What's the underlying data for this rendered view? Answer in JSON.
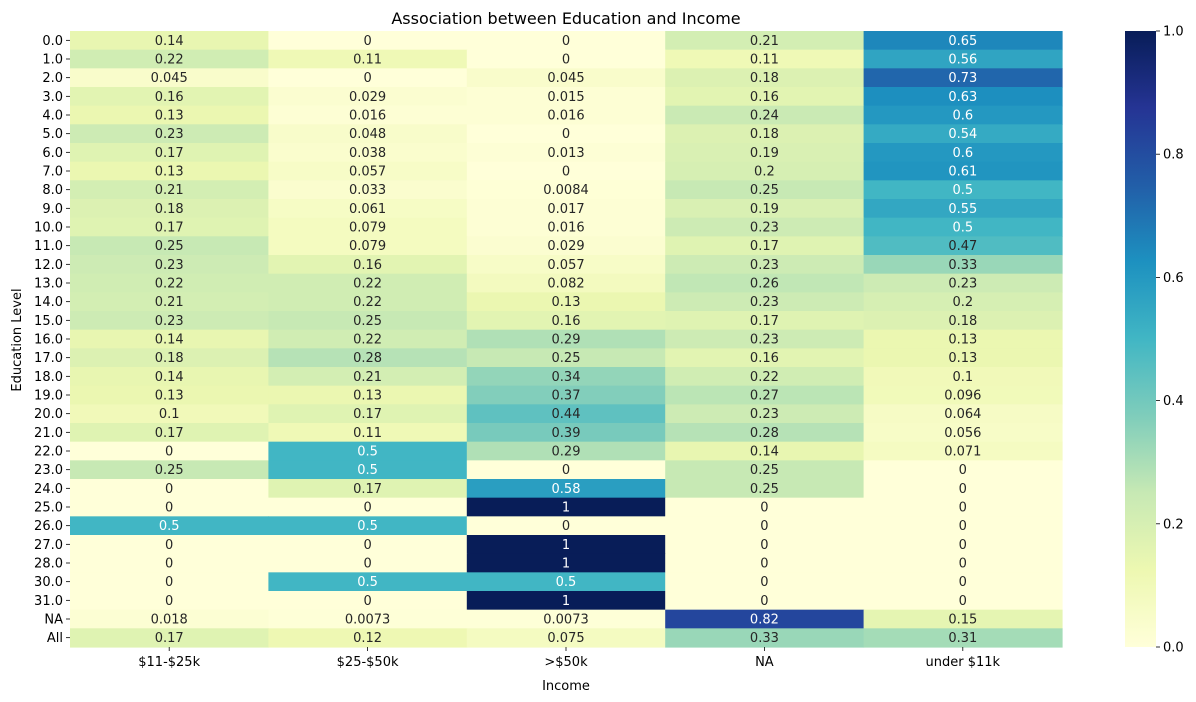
{
  "chart_data": {
    "type": "heatmap",
    "title": "Association between Education and Income",
    "xlabel": "Income",
    "ylabel": "Education Level",
    "columns": [
      "$11-$25k",
      "$25-$50k",
      ">$50k",
      "NA",
      "under $11k"
    ],
    "rows": [
      "0.0",
      "1.0",
      "2.0",
      "3.0",
      "4.0",
      "5.0",
      "6.0",
      "7.0",
      "8.0",
      "9.0",
      "10.0",
      "11.0",
      "12.0",
      "13.0",
      "14.0",
      "15.0",
      "16.0",
      "17.0",
      "18.0",
      "19.0",
      "20.0",
      "21.0",
      "22.0",
      "23.0",
      "24.0",
      "25.0",
      "26.0",
      "27.0",
      "28.0",
      "30.0",
      "31.0",
      "NA",
      "All"
    ],
    "values": [
      [
        0.14,
        0,
        0,
        0.21,
        0.65
      ],
      [
        0.22,
        0.11,
        0,
        0.11,
        0.56
      ],
      [
        0.045,
        0,
        0.045,
        0.18,
        0.73
      ],
      [
        0.16,
        0.029,
        0.015,
        0.16,
        0.63
      ],
      [
        0.13,
        0.016,
        0.016,
        0.24,
        0.6
      ],
      [
        0.23,
        0.048,
        0,
        0.18,
        0.54
      ],
      [
        0.17,
        0.038,
        0.013,
        0.19,
        0.6
      ],
      [
        0.13,
        0.057,
        0,
        0.2,
        0.61
      ],
      [
        0.21,
        0.033,
        0.0084,
        0.25,
        0.5
      ],
      [
        0.18,
        0.061,
        0.017,
        0.19,
        0.55
      ],
      [
        0.17,
        0.079,
        0.016,
        0.23,
        0.5
      ],
      [
        0.25,
        0.079,
        0.029,
        0.17,
        0.47
      ],
      [
        0.23,
        0.16,
        0.057,
        0.23,
        0.33
      ],
      [
        0.22,
        0.22,
        0.082,
        0.26,
        0.23
      ],
      [
        0.21,
        0.22,
        0.13,
        0.23,
        0.2
      ],
      [
        0.23,
        0.25,
        0.16,
        0.17,
        0.18
      ],
      [
        0.14,
        0.22,
        0.29,
        0.23,
        0.13
      ],
      [
        0.18,
        0.28,
        0.25,
        0.16,
        0.13
      ],
      [
        0.14,
        0.21,
        0.34,
        0.22,
        0.1
      ],
      [
        0.13,
        0.13,
        0.37,
        0.27,
        0.096
      ],
      [
        0.1,
        0.17,
        0.44,
        0.23,
        0.064
      ],
      [
        0.17,
        0.11,
        0.39,
        0.28,
        0.056
      ],
      [
        0,
        0.5,
        0.29,
        0.14,
        0.071
      ],
      [
        0.25,
        0.5,
        0,
        0.25,
        0
      ],
      [
        0,
        0.17,
        0.58,
        0.25,
        0
      ],
      [
        0,
        0,
        1,
        0,
        0
      ],
      [
        0.5,
        0.5,
        0,
        0,
        0
      ],
      [
        0,
        0,
        1,
        0,
        0
      ],
      [
        0,
        0,
        1,
        0,
        0
      ],
      [
        0,
        0.5,
        0.5,
        0,
        0
      ],
      [
        0,
        0,
        1,
        0,
        0
      ],
      [
        0.018,
        0.0073,
        0.0073,
        0.82,
        0.15
      ],
      [
        0.17,
        0.12,
        0.075,
        0.33,
        0.31
      ]
    ],
    "vmin": 0,
    "vmax": 1,
    "colormap": "YlGnBu",
    "colorbar_ticks": [
      "0.0",
      "0.2",
      "0.4",
      "0.6",
      "0.8",
      "1.0"
    ],
    "annotated": true,
    "grid": false
  }
}
